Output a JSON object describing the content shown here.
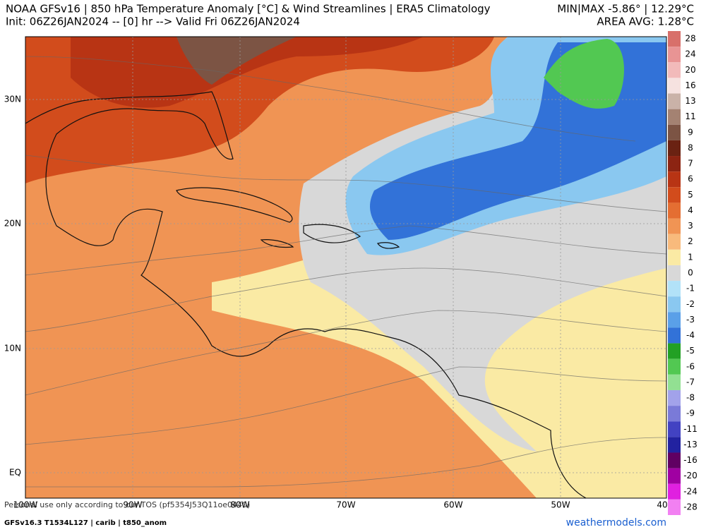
{
  "header": {
    "title": "NOAA GFSv16 | 850 hPa Temperature Anomaly [°C] & Wind Streamlines | ERA5 Climatology",
    "subtitle": "Init: 06Z26JAN2024 -- [0] hr --> Valid Fri 06Z26JAN2024",
    "minmax": "MIN|MAX -5.86° | 12.29°C",
    "area_avg": "AREA AVG: 1.28°C"
  },
  "map": {
    "lat_labels": [
      "30N",
      "20N",
      "10N",
      "EQ"
    ],
    "lon_labels": [
      "100W",
      "90W",
      "80W",
      "70W",
      "60W",
      "50W",
      "40"
    ]
  },
  "colorbar": {
    "levels": [
      {
        "label": "28",
        "color": "#d8706a"
      },
      {
        "label": "24",
        "color": "#e89494"
      },
      {
        "label": "20",
        "color": "#f2baba"
      },
      {
        "label": "16",
        "color": "#f6e2e0"
      },
      {
        "label": "13",
        "color": "#cab2a8"
      },
      {
        "label": "11",
        "color": "#a48272"
      },
      {
        "label": "9",
        "color": "#7c5444"
      },
      {
        "label": "8",
        "color": "#6a2212"
      },
      {
        "label": "7",
        "color": "#8c2412"
      },
      {
        "label": "6",
        "color": "#b83414"
      },
      {
        "label": "5",
        "color": "#d24c1c"
      },
      {
        "label": "4",
        "color": "#e46e32"
      },
      {
        "label": "3",
        "color": "#f09454"
      },
      {
        "label": "2",
        "color": "#f8ba7c"
      },
      {
        "label": "1",
        "color": "#faeaa4"
      },
      {
        "label": "0",
        "color": "#d8d8d8"
      },
      {
        "label": "-1",
        "color": "#b2e2f8"
      },
      {
        "label": "-2",
        "color": "#8ac8f0"
      },
      {
        "label": "-3",
        "color": "#5aa0e8"
      },
      {
        "label": "-4",
        "color": "#3272d8"
      },
      {
        "label": "-5",
        "color": "#22a024"
      },
      {
        "label": "-6",
        "color": "#52c852"
      },
      {
        "label": "-7",
        "color": "#92e092"
      },
      {
        "label": "-8",
        "color": "#a2a2ea"
      },
      {
        "label": "-9",
        "color": "#7a7ad8"
      },
      {
        "label": "-11",
        "color": "#4242c2"
      },
      {
        "label": "-13",
        "color": "#2222a0"
      },
      {
        "label": "-16",
        "color": "#600062"
      },
      {
        "label": "-20",
        "color": "#a000a2"
      },
      {
        "label": "-24",
        "color": "#e020e0"
      },
      {
        "label": "-28",
        "color": "#f280f2"
      }
    ]
  },
  "footer": {
    "disclaimer": "Personal use only according to our TOS (pf5354J53Q11oe0440)",
    "model": "GFSv16.3 T1534L127 | carib | t850_anom",
    "site": "weathermodels.com"
  }
}
